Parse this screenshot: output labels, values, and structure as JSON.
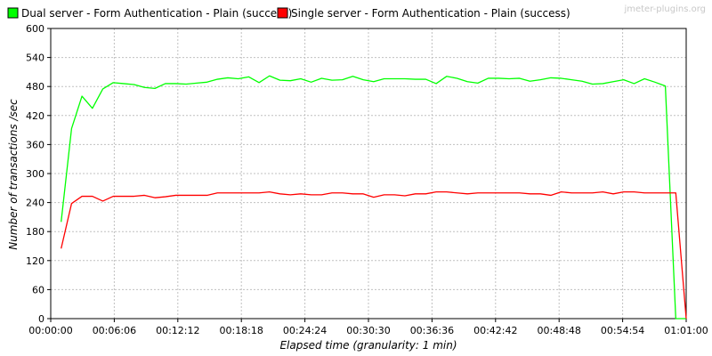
{
  "watermark": "jmeter-plugins.org",
  "chart_data": {
    "type": "line",
    "title": "",
    "xlabel": "Elapsed time (granularity: 1 min)",
    "ylabel": "Number of transactions /sec",
    "xlim_minutes": [
      0,
      61
    ],
    "ylim": [
      0,
      600
    ],
    "grid": true,
    "legend_placement": "top-left",
    "x_ticks": [
      {
        "minute": 0,
        "label": "00:00:00"
      },
      {
        "minute": 6.1,
        "label": "00:06:06"
      },
      {
        "minute": 12.2,
        "label": "00:12:12"
      },
      {
        "minute": 18.3,
        "label": "00:18:18"
      },
      {
        "minute": 24.4,
        "label": "00:24:24"
      },
      {
        "minute": 30.5,
        "label": "00:30:30"
      },
      {
        "minute": 36.6,
        "label": "00:36:36"
      },
      {
        "minute": 42.7,
        "label": "00:42:42"
      },
      {
        "minute": 48.8,
        "label": "00:48:48"
      },
      {
        "minute": 54.9,
        "label": "00:54:54"
      },
      {
        "minute": 61,
        "label": "01:01:00"
      }
    ],
    "y_ticks": [
      0,
      60,
      120,
      180,
      240,
      300,
      360,
      420,
      480,
      540,
      600
    ],
    "x_minutes": [
      1,
      2,
      3,
      4,
      5,
      6,
      7,
      8,
      9,
      10,
      11,
      12,
      13,
      14,
      15,
      16,
      17,
      18,
      19,
      20,
      21,
      22,
      23,
      24,
      25,
      26,
      27,
      28,
      29,
      30,
      31,
      32,
      33,
      34,
      35,
      36,
      37,
      38,
      39,
      40,
      41,
      42,
      43,
      44,
      45,
      46,
      47,
      48,
      49,
      50,
      51,
      52,
      53,
      54,
      55,
      56,
      57,
      58,
      59,
      60,
      61
    ],
    "series": [
      {
        "name": "Dual server - Form Authentication - Plain (success)",
        "color": "#00ff00",
        "values": [
          200,
          393,
          460,
          435,
          475,
          488,
          486,
          484,
          478,
          476,
          486,
          486,
          485,
          487,
          489,
          495,
          498,
          496,
          500,
          488,
          502,
          493,
          492,
          496,
          489,
          497,
          493,
          494,
          501,
          494,
          490,
          496,
          496,
          496,
          495,
          495,
          486,
          501,
          497,
          490,
          487,
          497,
          497,
          496,
          497,
          491,
          494,
          498,
          497,
          494,
          491,
          485,
          486,
          490,
          494,
          486,
          496,
          489,
          481,
          0,
          0
        ]
      },
      {
        "name": "Single server - Form Authentication - Plain (success)",
        "color": "#ff0000",
        "values": [
          145,
          238,
          253,
          253,
          243,
          253,
          253,
          253,
          255,
          250,
          252,
          255,
          255,
          255,
          255,
          260,
          260,
          260,
          260,
          260,
          262,
          258,
          256,
          258,
          256,
          256,
          260,
          260,
          258,
          258,
          251,
          256,
          256,
          254,
          258,
          258,
          262,
          262,
          260,
          258,
          260,
          260,
          260,
          260,
          260,
          258,
          258,
          255,
          262,
          260,
          260,
          260,
          262,
          258,
          262,
          262,
          260,
          260,
          260,
          260,
          0
        ]
      }
    ]
  }
}
